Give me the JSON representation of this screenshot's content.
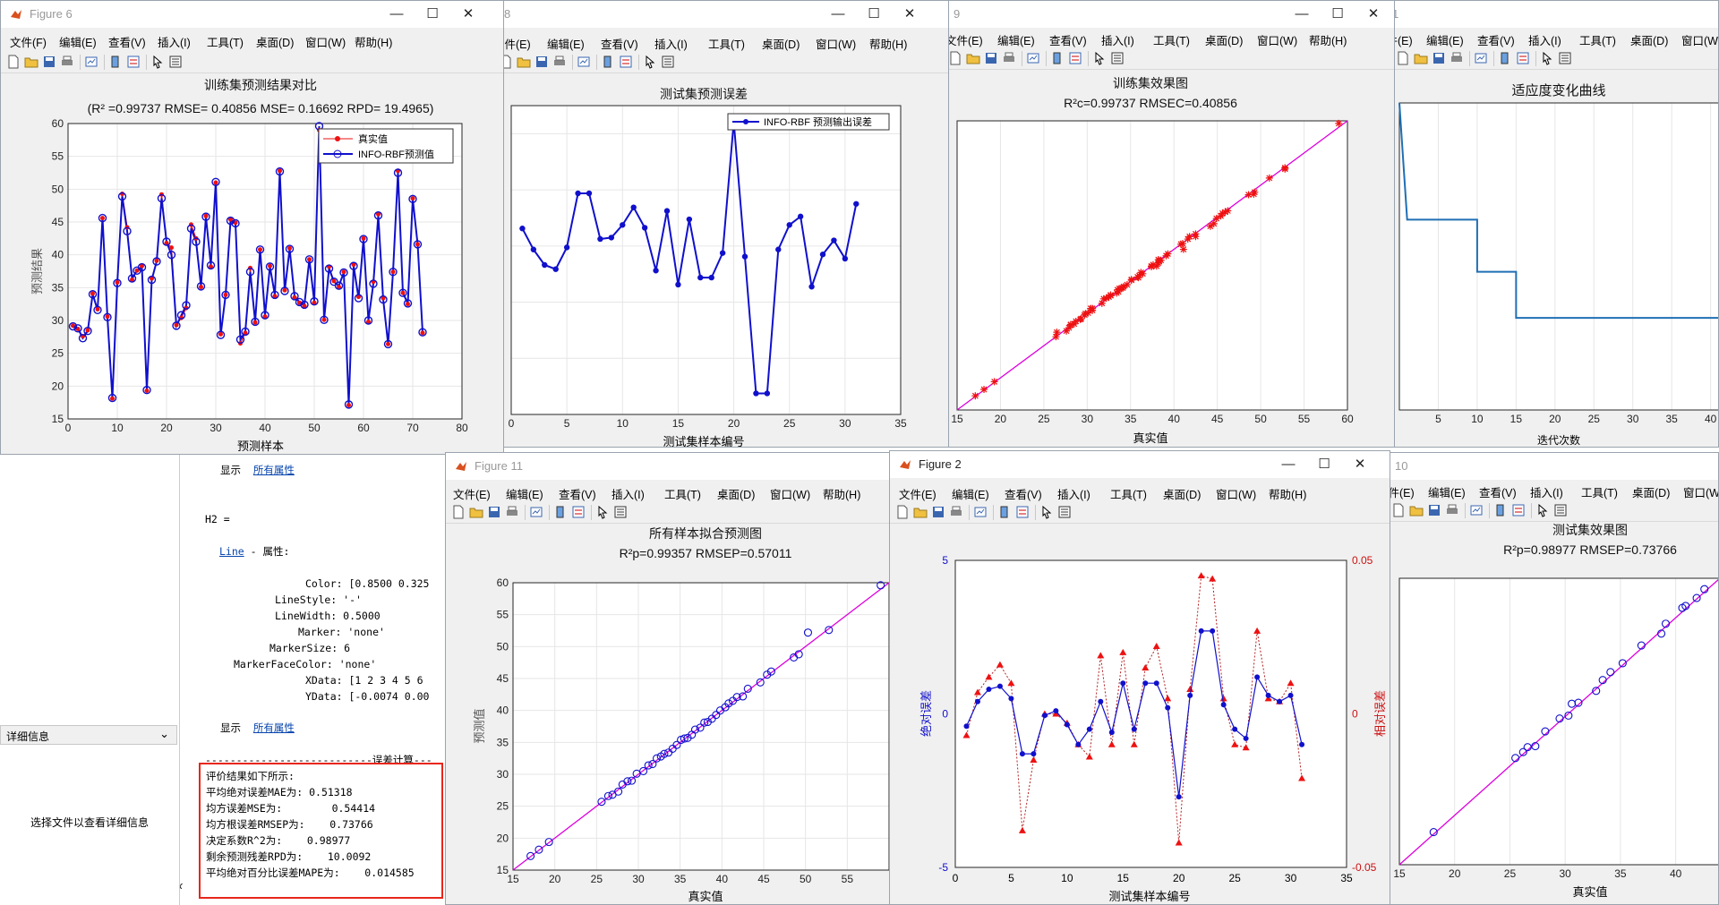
{
  "menu": [
    "文件(E)",
    "编辑(E)",
    "查看(V)",
    "插入(I)",
    "工具(T)",
    "桌面(D)",
    "窗口(W)",
    "帮助(H)"
  ],
  "menu_fig6": [
    "文件(F)",
    "编辑(E)",
    "查看(V)",
    "插入(I)",
    "工具(T)",
    "桌面(D)",
    "窗口(W)",
    "帮助(H)"
  ],
  "titles": {
    "fig6": "Figure 6",
    "fig11": "Figure 11",
    "fig2": "Figure 2",
    "fig8": "8",
    "fig9": "9",
    "fig1": "1",
    "fig10": "10"
  },
  "sidebar": {
    "detail_header": "详细信息",
    "detail_placeholder": "选择文件以查看详细信息"
  },
  "console": {
    "show": "显示",
    "all_props": "所有属性",
    "h2": "H2 =",
    "line": "Line",
    "props": " - 属性:",
    "rows": [
      "Color: [0.8500 0.325",
      "LineStyle: '-'",
      "LineWidth: 0.5000",
      "Marker: 'none'",
      "MarkerSize: 6",
      "MarkerFaceColor: 'none'",
      "XData: [1 2 3 4 5 6",
      "YData: [-0.0074 0.00"
    ],
    "divider": "---------------------------误差计算---",
    "prompt": ">>",
    "fx": "fx"
  },
  "results": [
    "评价结果如下所示:",
    "平均绝对误差MAE为: 0.51318",
    "均方误差MSE为:        0.54414",
    "均方根误差RMSEP为:    0.73766",
    "决定系数R^2为:    0.98977",
    "剩余预测残差RPD为:    10.0092",
    "平均绝对百分比误差MAPE为:    0.014585"
  ],
  "fig6": {
    "title": "训练集预测结果对比",
    "subtitle": "(R² =0.99737 RMSE= 0.40856 MSE= 0.16692 RPD= 19.4965)",
    "xlabel": "预测样本",
    "ylabel": "预测结果",
    "legend": [
      "真实值",
      "INFO-RBF预测值"
    ]
  },
  "fig8": {
    "title": "测试集预测误差",
    "xlabel": "测试集样本编号",
    "legend": [
      "INFO-RBF 预测输出误差"
    ]
  },
  "fig9": {
    "title": "训练集效果图",
    "subtitle": "R²c=0.99737  RMSEC=0.40856",
    "xlabel": "真实值"
  },
  "fig1": {
    "title": "适应度变化曲线",
    "xlabel": "迭代次数"
  },
  "fig11": {
    "title": "所有样本拟合预测图",
    "subtitle": "R²p=0.99357  RMSEP=0.57011",
    "xlabel": "真实值",
    "ylabel": "预测值"
  },
  "fig2": {
    "xlabel": "测试集样本编号",
    "ylabel_left": "绝对误差",
    "ylabel_right": "相对误差"
  },
  "fig10": {
    "title": "测试集效果图",
    "subtitle": "R²p=0.98977  RMSEP=0.73766",
    "xlabel": "真实值"
  },
  "colors": {
    "blue": "#1010cc",
    "red": "#ee1111",
    "magenta": "#dd00dd",
    "teal": "#1f6fb4",
    "redbox": "#e8261a"
  },
  "chart_data": [
    {
      "id": "fig6",
      "type": "line",
      "title": "训练集预测结果对比",
      "xlabel": "预测样本",
      "ylabel": "预测结果",
      "xlim": [
        0,
        80
      ],
      "ylim": [
        15,
        60
      ],
      "xticks": [
        0,
        10,
        20,
        30,
        40,
        50,
        60,
        70,
        80
      ],
      "yticks": [
        15,
        20,
        25,
        30,
        35,
        40,
        45,
        50,
        55,
        60
      ],
      "series": [
        {
          "name": "真实值",
          "values": [
            29.2,
            28.7,
            27.6,
            28.5,
            34.1,
            31.7,
            45.6,
            30.6,
            18.1,
            35.8,
            49.3,
            44.2,
            36.2,
            37.6,
            38.3,
            19.3,
            36.4,
            39.1,
            49.2,
            41.8,
            41.1,
            29.3,
            30.4,
            31.9,
            44.6,
            42.5,
            35.1,
            45.9,
            38.2,
            51.0,
            27.9,
            33.9,
            45.4,
            44.9,
            26.5,
            28.1,
            38.0,
            29.7,
            40.8,
            30.6,
            38.3,
            33.7,
            52.8,
            34.6,
            41.0,
            33.5,
            32.7,
            32.2,
            39.3,
            32.7,
            59.0,
            30.1,
            38.2,
            36.0,
            35.1,
            37.4,
            17.1,
            38.5,
            33.6,
            42.5,
            29.8,
            35.9,
            46.2,
            33.4,
            26.4,
            37.4,
            52.8,
            34.2,
            32.5,
            48.6,
            41.6,
            28.1
          ]
        },
        {
          "name": "INFO-RBF预测值",
          "values": [
            29.1,
            28.8,
            27.3,
            28.4,
            34.0,
            31.6,
            45.6,
            30.5,
            18.2,
            35.7,
            48.9,
            43.6,
            36.4,
            37.6,
            38.1,
            19.4,
            36.2,
            39.0,
            48.6,
            42.0,
            40.0,
            29.2,
            30.8,
            32.3,
            44.0,
            42.0,
            35.2,
            45.8,
            38.4,
            51.1,
            27.8,
            33.9,
            45.2,
            44.8,
            27.1,
            28.3,
            37.4,
            29.8,
            40.8,
            30.8,
            38.2,
            33.9,
            52.7,
            34.5,
            40.9,
            33.7,
            32.8,
            32.4,
            39.3,
            32.9,
            59.6,
            30.1,
            37.9,
            35.9,
            35.3,
            37.3,
            17.2,
            38.3,
            33.4,
            42.4,
            30.0,
            35.6,
            46.0,
            33.2,
            26.4,
            37.4,
            52.5,
            34.2,
            32.6,
            48.5,
            41.6,
            28.2
          ]
        }
      ]
    },
    {
      "id": "fig8",
      "type": "line",
      "title": "测试集预测误差",
      "xlabel": "测试集样本编号",
      "xlim": [
        0,
        35
      ],
      "xticks": [
        0,
        5,
        10,
        15,
        20,
        25,
        30,
        35
      ],
      "series": [
        {
          "name": "INFO-RBF 预测输出误差",
          "values": [
            0.25,
            -0.05,
            -0.27,
            -0.33,
            -0.02,
            0.75,
            0.75,
            0.1,
            0.12,
            0.3,
            0.55,
            0.26,
            -0.35,
            0.5,
            -0.55,
            0.38,
            -0.45,
            -0.45,
            -0.1,
            1.77,
            -0.15,
            -2.1,
            -2.1,
            -0.05,
            0.3,
            0.42,
            -0.58,
            -0.12,
            0.08,
            -0.18,
            0.6
          ]
        }
      ]
    },
    {
      "id": "fig9",
      "type": "scatter",
      "title": "训练集效果图",
      "xlabel": "真实值",
      "xlim": [
        15,
        60
      ],
      "ylim": [
        15,
        60
      ],
      "xticks": [
        15,
        20,
        25,
        30,
        35,
        40,
        45,
        50,
        55,
        60
      ],
      "x": [
        17.1,
        18.1,
        19.3,
        26.4,
        26.5,
        27.6,
        27.9,
        28.1,
        28.1,
        28.5,
        28.7,
        29.2,
        29.3,
        29.7,
        29.8,
        30.1,
        30.4,
        30.6,
        30.6,
        31.7,
        31.9,
        32.2,
        32.5,
        32.7,
        32.7,
        33.4,
        33.5,
        33.6,
        33.7,
        33.9,
        34.1,
        34.2,
        34.6,
        35.1,
        35.1,
        35.8,
        35.9,
        36.0,
        36.2,
        36.4,
        37.4,
        37.4,
        37.6,
        38.0,
        38.2,
        38.2,
        38.3,
        38.3,
        38.5,
        39.1,
        39.3,
        40.8,
        41.0,
        41.1,
        41.6,
        41.8,
        42.5,
        42.5,
        44.2,
        44.6,
        44.9,
        45.4,
        45.6,
        45.9,
        46.2,
        48.6,
        49.2,
        49.3,
        51.0,
        52.8,
        52.8,
        59.0
      ],
      "y": [
        17.2,
        18.2,
        19.4,
        26.4,
        27.1,
        27.3,
        27.8,
        28.3,
        28.2,
        28.4,
        28.8,
        29.1,
        29.2,
        29.8,
        30.0,
        30.1,
        30.8,
        30.5,
        30.8,
        31.6,
        32.3,
        32.4,
        32.6,
        32.8,
        32.9,
        33.2,
        33.7,
        33.4,
        33.9,
        33.9,
        34.0,
        34.2,
        34.5,
        35.2,
        35.3,
        35.7,
        35.6,
        35.9,
        36.4,
        36.2,
        37.3,
        37.4,
        37.6,
        37.4,
        38.4,
        37.9,
        38.1,
        38.2,
        38.3,
        39.0,
        39.3,
        40.8,
        40.9,
        40.0,
        41.6,
        42.0,
        42.0,
        42.4,
        43.6,
        44.0,
        44.8,
        45.2,
        45.6,
        45.8,
        46.0,
        48.5,
        48.6,
        48.9,
        51.1,
        52.7,
        52.5,
        59.6
      ]
    },
    {
      "id": "fig1",
      "type": "line",
      "title": "适应度变化曲线",
      "xlabel": "迭代次数",
      "xlim": [
        0,
        42
      ],
      "xticks": [
        5,
        10,
        15,
        20,
        25,
        30,
        35,
        40
      ],
      "x": [
        0,
        1,
        10,
        10,
        15,
        15,
        42
      ],
      "y": [
        1.0,
        0.62,
        0.62,
        0.45,
        0.45,
        0.3,
        0.3
      ]
    },
    {
      "id": "fig11",
      "type": "scatter",
      "title": "所有样本拟合预测图",
      "xlabel": "真实值",
      "ylabel": "预测值",
      "xlim": [
        15,
        60
      ],
      "ylim": [
        15,
        60
      ],
      "xticks": [
        15,
        20,
        25,
        30,
        35,
        40,
        45,
        50,
        55
      ],
      "yticks": [
        15,
        20,
        25,
        30,
        35,
        40,
        45,
        50,
        55,
        60
      ],
      "x": [
        17.1,
        18.1,
        19.3,
        25.6,
        26.4,
        26.9,
        27.6,
        28.1,
        28.7,
        29.2,
        29.8,
        30.6,
        31.2,
        31.7,
        32.2,
        32.7,
        33.1,
        33.6,
        34.1,
        34.6,
        35.1,
        35.5,
        35.9,
        36.4,
        36.8,
        37.4,
        37.9,
        38.3,
        38.8,
        39.3,
        39.8,
        40.4,
        40.8,
        41.3,
        41.8,
        42.5,
        43.1,
        44.6,
        45.4,
        45.9,
        48.6,
        49.2,
        50.3,
        52.8,
        59.0
      ],
      "y": [
        17.2,
        18.2,
        19.4,
        25.7,
        26.6,
        26.8,
        27.3,
        28.4,
        28.9,
        29.0,
        30.1,
        30.5,
        31.4,
        31.6,
        32.5,
        32.8,
        33.2,
        33.4,
        34.0,
        34.6,
        35.4,
        35.6,
        35.7,
        36.2,
        37.0,
        37.3,
        38.1,
        38.2,
        38.7,
        39.3,
        40.0,
        40.5,
        41.1,
        41.5,
        42.1,
        42.2,
        43.4,
        44.4,
        45.6,
        46.1,
        48.3,
        48.8,
        52.2,
        52.6,
        59.6
      ]
    },
    {
      "id": "fig2",
      "type": "line",
      "xlabel": "测试集样本编号",
      "ylabel_left": "绝对误差",
      "ylabel_right": "相对误差",
      "xlim": [
        0,
        35
      ],
      "ylim_left": [
        -5,
        5
      ],
      "ylim_right": [
        -0.05,
        0.05
      ],
      "xticks": [
        0,
        5,
        10,
        15,
        20,
        25,
        30,
        35
      ],
      "yticks_left": [
        -5,
        0,
        5
      ],
      "yticks_right": [
        -0.05,
        0,
        0.05
      ],
      "series": [
        {
          "name": "绝对误差",
          "values": [
            -0.4,
            0.4,
            0.8,
            0.9,
            0.5,
            -1.3,
            -1.3,
            -0.05,
            0.1,
            -0.35,
            -1.0,
            -0.5,
            0.4,
            -0.6,
            1.0,
            -0.5,
            1.0,
            1.0,
            0.2,
            -2.7,
            0.6,
            2.7,
            2.7,
            0.3,
            -0.5,
            -0.8,
            1.2,
            0.6,
            0.4,
            0.6,
            -1.0
          ]
        },
        {
          "name": "相对误差",
          "values": [
            -0.007,
            0.007,
            0.012,
            0.016,
            0.01,
            -0.038,
            -0.015,
            0.0,
            0.0,
            -0.003,
            -0.01,
            -0.014,
            0.019,
            -0.01,
            0.02,
            -0.01,
            0.015,
            0.022,
            0.005,
            -0.042,
            0.008,
            0.045,
            0.044,
            0.005,
            -0.01,
            -0.011,
            0.027,
            0.005,
            0.004,
            0.01,
            -0.021
          ]
        }
      ]
    },
    {
      "id": "fig10",
      "type": "scatter",
      "title": "测试集效果图",
      "xlabel": "真实值",
      "xlim": [
        15,
        44
      ],
      "xticks": [
        15,
        20,
        25,
        30,
        35,
        40
      ],
      "x": [
        18.1,
        25.5,
        26.2,
        26.6,
        27.3,
        28.2,
        29.5,
        30.3,
        30.6,
        31.2,
        32.8,
        33.4,
        34.1,
        35.2,
        36.9,
        38.7,
        39.1,
        40.6,
        40.9,
        41.9,
        42.6
      ],
      "y": [
        18.3,
        25.8,
        26.4,
        26.9,
        27.0,
        28.5,
        29.8,
        30.1,
        31.3,
        31.4,
        32.6,
        33.7,
        34.5,
        35.4,
        37.2,
        38.4,
        39.4,
        41.0,
        41.2,
        42.0,
        42.9
      ]
    }
  ]
}
